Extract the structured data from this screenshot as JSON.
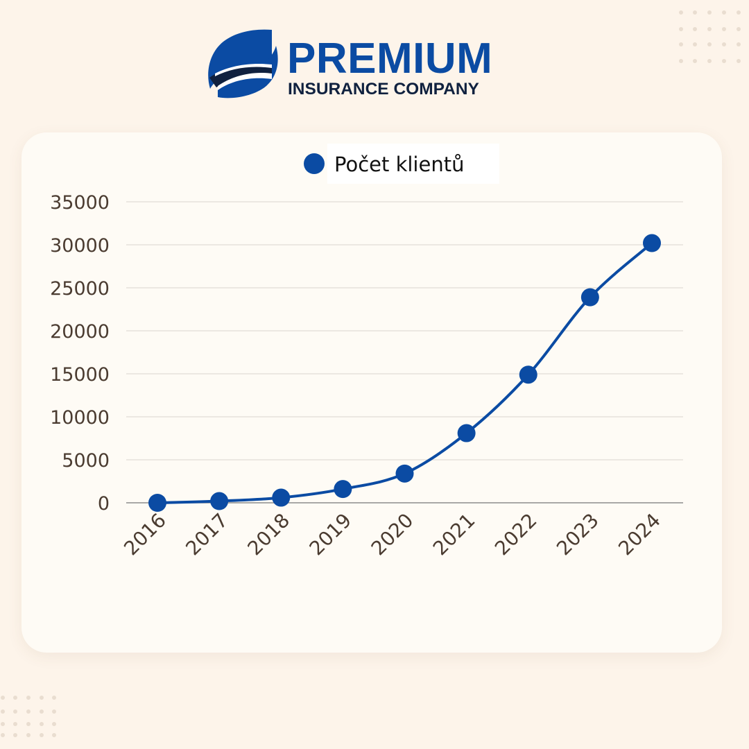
{
  "brand": {
    "name": "PREMIUM",
    "subtitle": "INSURANCE COMPANY",
    "primary_color": "#0b4ba3",
    "dark_color": "#10213f"
  },
  "chart_data": {
    "type": "line",
    "title": "",
    "xlabel": "",
    "ylabel": "",
    "x": [
      "2016",
      "2017",
      "2018",
      "2019",
      "2020",
      "2021",
      "2022",
      "2023",
      "2024"
    ],
    "series": [
      {
        "name": "Počet klientů",
        "color": "#0b4ba3",
        "values": [
          0,
          200,
          600,
          1600,
          3400,
          8100,
          14900,
          23900,
          30200
        ]
      }
    ],
    "ylim": [
      0,
      35000
    ],
    "yticks": [
      "35000",
      "30000",
      "25000",
      "20000",
      "15000",
      "10000",
      "5000",
      "0"
    ],
    "grid": true,
    "legend": "top-center",
    "smooth": true,
    "background_color": "#fdf4ea",
    "card_color": "#fefbf5"
  }
}
